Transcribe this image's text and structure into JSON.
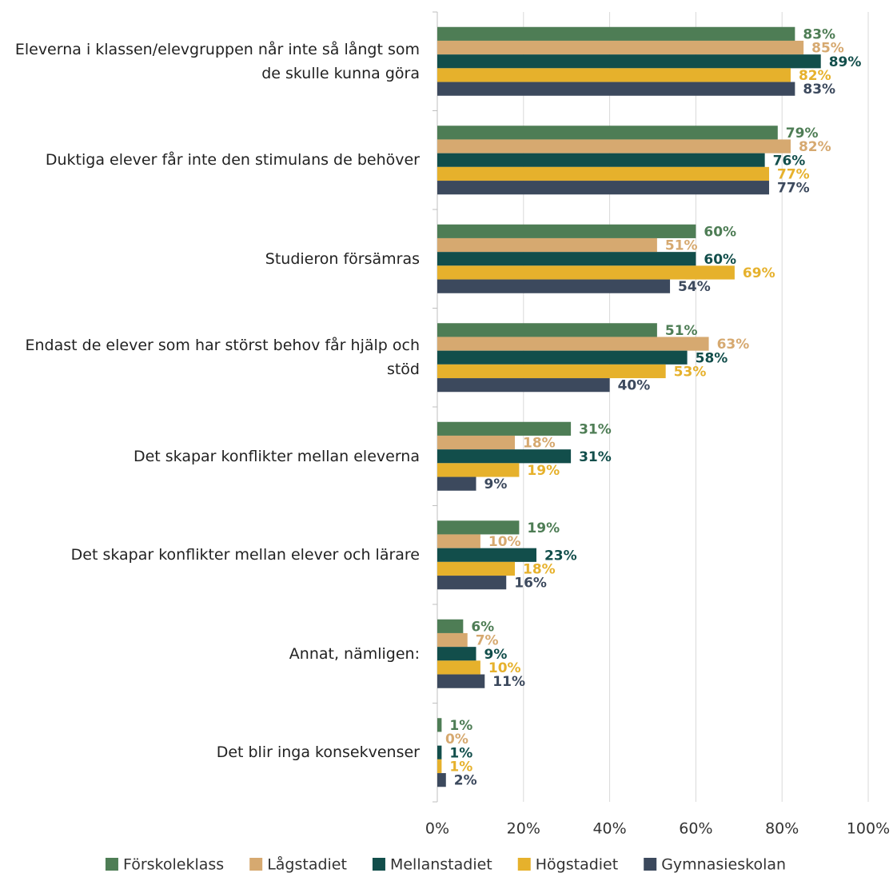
{
  "chart_data": {
    "type": "hbar",
    "categories": [
      "Eleverna i klassen/elevgruppen når inte så långt som de skulle kunna göra",
      "Duktiga elever får inte den stimulans de behöver",
      "Studieron försämras",
      "Endast de elever som har störst behov får hjälp och stöd",
      "Det skapar konflikter mellan eleverna",
      "Det skapar konflikter mellan elever och lärare",
      "Annat, nämligen:",
      "Det blir inga konsekvenser"
    ],
    "series": [
      {
        "name": "Förskoleklass",
        "color": "#4e7d55",
        "values": [
          83,
          79,
          60,
          51,
          31,
          19,
          6,
          1
        ],
        "value_labels": [
          "83%",
          "79%",
          "60%",
          "51%",
          "31%",
          "19%",
          "6%",
          "1%"
        ]
      },
      {
        "name": "Lågstadiet",
        "color": "#d6a970",
        "values": [
          85,
          82,
          51,
          63,
          18,
          10,
          7,
          0
        ],
        "value_labels": [
          "85%",
          "82%",
          "51%",
          "63%",
          "18%",
          "10%",
          "7%",
          "0%"
        ]
      },
      {
        "name": "Mellanstadiet",
        "color": "#124e4b",
        "values": [
          89,
          76,
          60,
          58,
          31,
          23,
          9,
          1
        ],
        "value_labels": [
          "89%",
          "76%",
          "60%",
          "58%",
          "31%",
          "23%",
          "9%",
          "1%"
        ]
      },
      {
        "name": "Högstadiet",
        "color": "#e6b12c",
        "values": [
          82,
          77,
          69,
          53,
          19,
          18,
          10,
          1
        ],
        "value_labels": [
          "82%",
          "77%",
          "69%",
          "53%",
          "19%",
          "18%",
          "10%",
          "1%"
        ]
      },
      {
        "name": "Gymnasieskolan",
        "color": "#3c495d",
        "values": [
          83,
          77,
          54,
          40,
          9,
          16,
          11,
          2
        ],
        "value_labels": [
          "83%",
          "77%",
          "54%",
          "40%",
          "9%",
          "16%",
          "11%",
          "2%"
        ]
      }
    ],
    "xlim": [
      0,
      100
    ],
    "xticks": [
      {
        "value": 0,
        "label": "0%"
      },
      {
        "value": 20,
        "label": "20%"
      },
      {
        "value": 40,
        "label": "40%"
      },
      {
        "value": 60,
        "label": "60%"
      },
      {
        "value": 80,
        "label": "80%"
      },
      {
        "value": 100,
        "label": "100%"
      }
    ],
    "grid": true,
    "legend": "bottom"
  }
}
